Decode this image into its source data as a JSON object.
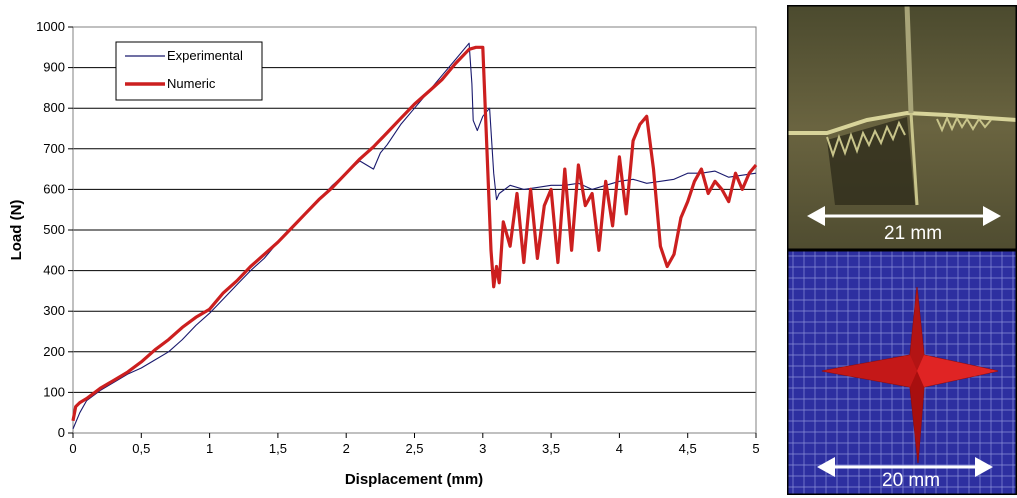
{
  "chart_data": {
    "type": "line",
    "title": "",
    "xlabel": "Displacement (mm)",
    "ylabel": "Load (N)",
    "xlim": [
      0,
      5
    ],
    "ylim": [
      0,
      1000
    ],
    "x_ticks": [
      "0",
      "0,5",
      "1",
      "1,5",
      "2",
      "2,5",
      "3",
      "3,5",
      "4",
      "4,5",
      "5"
    ],
    "y_ticks": [
      "0",
      "100",
      "200",
      "300",
      "400",
      "500",
      "600",
      "700",
      "800",
      "900",
      "1000"
    ],
    "grid": "horizontal",
    "legend_position": "top-left",
    "series": [
      {
        "name": "Experimental",
        "color": "#1a1a6e",
        "x": [
          0,
          0.05,
          0.1,
          0.2,
          0.3,
          0.4,
          0.5,
          0.6,
          0.7,
          0.8,
          0.9,
          1.0,
          1.1,
          1.2,
          1.3,
          1.4,
          1.5,
          1.6,
          1.7,
          1.8,
          1.9,
          2.0,
          2.1,
          2.2,
          2.25,
          2.3,
          2.4,
          2.5,
          2.6,
          2.7,
          2.8,
          2.9,
          2.92,
          2.93,
          2.96,
          3.0,
          3.05,
          3.08,
          3.1,
          3.12,
          3.2,
          3.3,
          3.4,
          3.5,
          3.6,
          3.7,
          3.8,
          3.9,
          4.0,
          4.1,
          4.2,
          4.3,
          4.4,
          4.5,
          4.6,
          4.7,
          4.8,
          4.9,
          5.0
        ],
        "y": [
          10,
          50,
          80,
          105,
          125,
          145,
          160,
          180,
          200,
          230,
          265,
          295,
          330,
          365,
          400,
          430,
          470,
          505,
          540,
          575,
          610,
          640,
          670,
          650,
          690,
          710,
          760,
          800,
          840,
          880,
          920,
          960,
          860,
          770,
          745,
          780,
          800,
          640,
          575,
          590,
          610,
          600,
          605,
          610,
          610,
          615,
          600,
          610,
          620,
          625,
          615,
          620,
          625,
          640,
          640,
          645,
          630,
          635,
          640
        ]
      },
      {
        "name": "Numeric",
        "color": "#cc1f1f",
        "x": [
          0,
          0.02,
          0.05,
          0.1,
          0.2,
          0.3,
          0.4,
          0.5,
          0.6,
          0.7,
          0.8,
          0.9,
          1.0,
          1.1,
          1.2,
          1.3,
          1.4,
          1.5,
          1.6,
          1.7,
          1.8,
          1.9,
          2.0,
          2.1,
          2.2,
          2.3,
          2.4,
          2.5,
          2.6,
          2.7,
          2.8,
          2.9,
          2.95,
          3.0,
          3.03,
          3.06,
          3.08,
          3.1,
          3.12,
          3.15,
          3.2,
          3.25,
          3.3,
          3.35,
          3.4,
          3.45,
          3.5,
          3.55,
          3.6,
          3.65,
          3.7,
          3.75,
          3.8,
          3.85,
          3.9,
          3.95,
          4.0,
          4.05,
          4.1,
          4.15,
          4.2,
          4.25,
          4.3,
          4.35,
          4.4,
          4.45,
          4.5,
          4.55,
          4.6,
          4.65,
          4.7,
          4.75,
          4.8,
          4.85,
          4.9,
          4.95,
          5.0
        ],
        "y": [
          30,
          65,
          75,
          85,
          110,
          130,
          150,
          175,
          205,
          230,
          260,
          285,
          305,
          345,
          375,
          410,
          440,
          470,
          505,
          540,
          575,
          605,
          640,
          675,
          705,
          740,
          775,
          810,
          840,
          870,
          910,
          945,
          950,
          950,
          700,
          450,
          360,
          410,
          370,
          520,
          460,
          590,
          420,
          600,
          430,
          560,
          600,
          420,
          650,
          450,
          660,
          560,
          590,
          450,
          620,
          510,
          680,
          540,
          720,
          760,
          780,
          650,
          460,
          410,
          440,
          530,
          570,
          620,
          650,
          590,
          620,
          600,
          570,
          640,
          600,
          640,
          660
        ]
      }
    ]
  },
  "figure": {
    "photo_scale_label": "21 mm",
    "mesh_scale_label": "20 mm",
    "photo_bg_color": "#5a5434",
    "mesh_bg_color": "#2d2fa0",
    "cross_color": "#d11a1a"
  }
}
